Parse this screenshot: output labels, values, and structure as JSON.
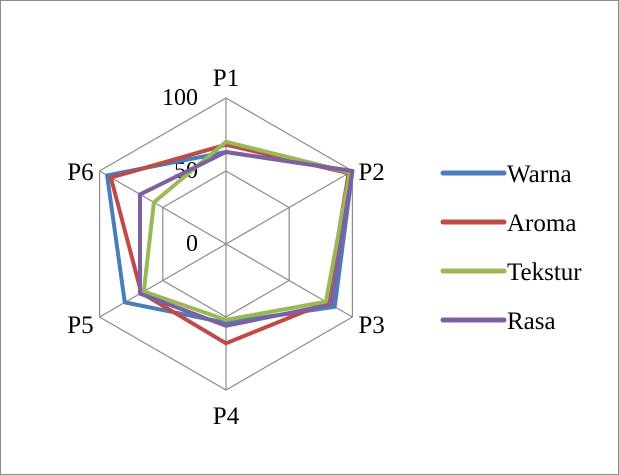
{
  "chart_data": {
    "type": "radar",
    "axes": [
      "P1",
      "P2",
      "P3",
      "P4",
      "P5",
      "P6"
    ],
    "rlim": [
      0,
      100
    ],
    "ticks": [
      0,
      50,
      100
    ],
    "tick_labels": [
      "0",
      "50",
      "100"
    ],
    "grid": true,
    "legend_position": "right",
    "series": [
      {
        "name": "Warna",
        "color": "#4a7ebb",
        "values": [
          63,
          100,
          86,
          54,
          80,
          94
        ]
      },
      {
        "name": "Aroma",
        "color": "#be4b48",
        "values": [
          68,
          97,
          80,
          68,
          67,
          91
        ]
      },
      {
        "name": "Tekstur",
        "color": "#98b954",
        "values": [
          70,
          98,
          79,
          52,
          65,
          57
        ]
      },
      {
        "name": "Rasa",
        "color": "#7d60a0",
        "values": [
          63,
          100,
          83,
          56,
          68,
          68
        ]
      }
    ]
  }
}
